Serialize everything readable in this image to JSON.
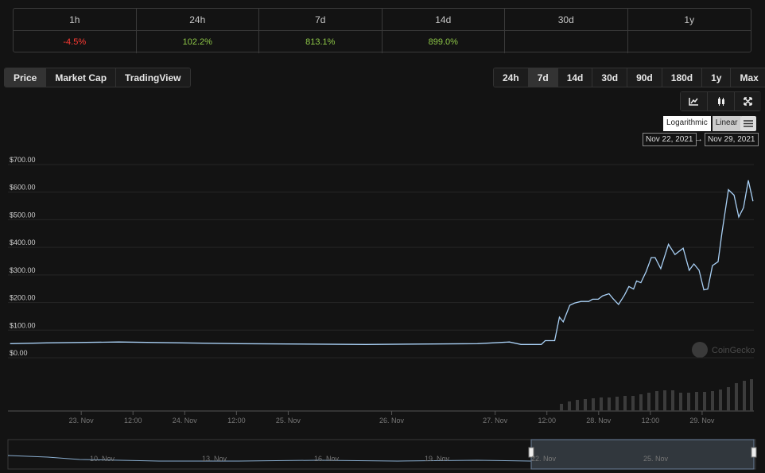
{
  "performance": {
    "headers": [
      "1h",
      "24h",
      "7d",
      "14d",
      "30d",
      "1y"
    ],
    "values": [
      "-4.5%",
      "102.2%",
      "813.1%",
      "899.0%"
    ]
  },
  "tabs": [
    "Price",
    "Market Cap",
    "TradingView"
  ],
  "ranges": [
    "24h",
    "7d",
    "14d",
    "30d",
    "90d",
    "180d",
    "1y",
    "Max"
  ],
  "scale_buttons": [
    "Logarithmic",
    "Linear"
  ],
  "date_range": {
    "from": "Nov 22, 2021",
    "arrow": "→",
    "to": "Nov 29, 2021"
  },
  "watermark": "CoinGecko",
  "navigator_labels": [
    "10. Nov",
    "13. Nov",
    "16. Nov",
    "19. Nov",
    "22. Nov",
    "25. Nov"
  ],
  "chart_data": {
    "type": "line",
    "x": [
      7.5,
      16,
      32.7,
      60.4,
      90,
      115.9,
      123.3,
      126,
      130.7,
      131.6,
      133.8,
      134.9,
      135.8,
      137.3,
      138.4,
      139.9,
      141.7,
      142.6,
      143.9,
      144.9,
      146.4,
      147.3,
      148.6,
      150,
      151,
      152.1,
      152.8,
      153.8,
      155,
      156.2,
      157.1,
      158.4,
      160.2,
      161.7,
      163.6,
      165,
      166.1,
      167.3,
      168.4,
      169.3,
      170.4,
      171.7,
      172.6,
      174.1,
      175.4,
      176.5,
      177.6,
      178.7,
      179.8
    ],
    "series": [
      {
        "color": "#a9d0f5",
        "values": [
          51,
          54,
          57,
          51,
          48,
          51,
          57,
          48,
          48,
          62,
          62,
          147,
          130,
          190,
          198,
          204,
          204,
          212,
          212,
          224,
          232,
          215,
          193,
          227,
          258,
          249,
          278,
          272,
          312,
          363,
          363,
          323,
          411,
          374,
          397,
          317,
          340,
          317,
          246,
          249,
          334,
          348,
          453,
          609,
          589,
          510,
          544,
          643,
          567
        ]
      }
    ],
    "xlim": [
      7,
      180
    ],
    "xticks": [
      {
        "value": 24,
        "label": "23. Nov"
      },
      {
        "value": 36,
        "label": "12:00"
      },
      {
        "value": 48,
        "label": "24. Nov"
      },
      {
        "value": 60,
        "label": "12:00"
      },
      {
        "value": 72,
        "label": "25. Nov"
      },
      {
        "value": 96,
        "label": "26. Nov"
      },
      {
        "value": 120,
        "label": "27. Nov"
      },
      {
        "value": 132,
        "label": "12:00"
      },
      {
        "value": 144,
        "label": "28. Nov"
      },
      {
        "value": 156,
        "label": "12:00"
      },
      {
        "value": 168,
        "label": "29. Nov"
      }
    ],
    "ylim": [
      0,
      700
    ],
    "yticks": [
      {
        "value": 0,
        "label": "$0.00"
      },
      {
        "value": 100,
        "label": "$100.00"
      },
      {
        "value": 200,
        "label": "$200.00"
      },
      {
        "value": 300,
        "label": "$300.00"
      },
      {
        "value": 400,
        "label": "$400.00"
      },
      {
        "value": 500,
        "label": "$500.00"
      },
      {
        "value": 600,
        "label": "$600.00"
      },
      {
        "value": 700,
        "label": "$700.00"
      }
    ],
    "grid": true
  }
}
